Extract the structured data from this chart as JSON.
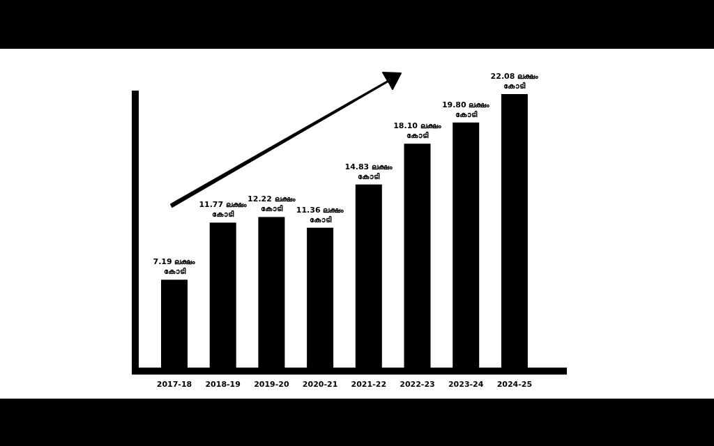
{
  "chart_data": {
    "type": "bar",
    "categories": [
      "2017-18",
      "2018-19",
      "2019-20",
      "2020-21",
      "2021-22",
      "2022-23",
      "2023-24",
      "2024-25"
    ],
    "values": [
      7.19,
      11.77,
      12.22,
      11.36,
      14.83,
      18.1,
      19.8,
      22.08
    ],
    "value_labels": [
      "7.19 ലക്ഷം കോടി",
      "11.77 ലക്ഷം കോടി",
      "12.22 ലക്ഷം കോടി",
      "11.36 ലക്ഷം കോടി",
      "14.83 ലക്ഷം കോടി",
      "18.10 ലക്ഷം കോടി",
      "19.80 ലക്ഷം കോടി",
      "22.08 ലക്ഷം കോടി"
    ],
    "color": "#000000"
  }
}
